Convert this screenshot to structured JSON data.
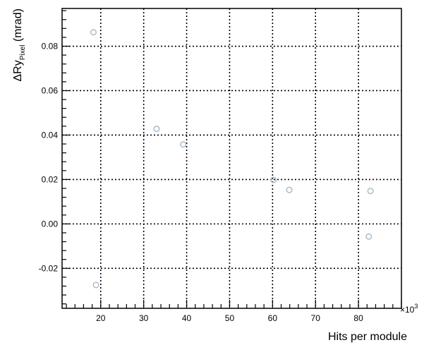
{
  "chart_data": {
    "type": "scatter",
    "title": "",
    "xlabel": "Hits per module",
    "ylabel": {
      "prefix": "ΔRy",
      "subscript": "Pixel",
      "suffix": " (mrad)"
    },
    "x_multiplier_label": "×10",
    "x_multiplier_exponent": "3",
    "xlim": [
      11,
      90
    ],
    "ylim": [
      -0.038,
      0.097
    ],
    "x_ticks": [
      20,
      30,
      40,
      50,
      60,
      70,
      80
    ],
    "x_tick_labels": [
      "20",
      "30",
      "40",
      "50",
      "60",
      "70",
      "80"
    ],
    "y_ticks": [
      -0.02,
      0.0,
      0.02,
      0.04,
      0.06,
      0.08
    ],
    "y_tick_labels": [
      "-0.02",
      "0.00",
      "0.02",
      "0.04",
      "0.06",
      "0.08"
    ],
    "grid": true,
    "marker_color": "#a9bccb",
    "series": [
      {
        "x": [
          18.3,
          18.9,
          33.0,
          39.2,
          60.2,
          63.9,
          82.8,
          82.4
        ],
        "y": [
          0.0863,
          -0.0275,
          0.0428,
          0.0358,
          0.0198,
          0.0153,
          0.0148,
          -0.0057
        ]
      }
    ]
  }
}
